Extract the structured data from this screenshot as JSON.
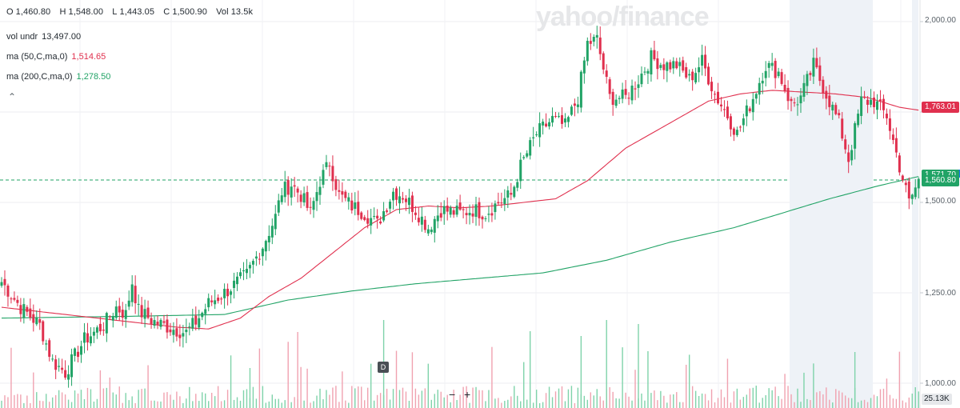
{
  "header": {
    "open_label": "O",
    "open": "1,460.80",
    "high_label": "H",
    "high": "1,548.00",
    "low_label": "L",
    "low": "1,443.05",
    "close_label": "C",
    "close": "1,500.90",
    "vol_label": "Vol",
    "vol": "13.5k"
  },
  "indicators": [
    {
      "label": "vol undr",
      "value": "13,497.00",
      "color": "#232a31"
    },
    {
      "label": "ma (50,C,ma,0)",
      "value": "1,514.65",
      "color": "#e0304e"
    },
    {
      "label": "ma (200,C,ma,0)",
      "value": "1,278.50",
      "color": "#21a366"
    }
  ],
  "watermark": "yahoo/finance",
  "badge_d": "D",
  "zoom_out": "−",
  "zoom_in": "+",
  "price_tags": {
    "ma50": {
      "value": "1,763.01",
      "color": "#e0304e"
    },
    "ma200": {
      "value": "1,571.70",
      "color": "#21a366"
    },
    "last": {
      "value": "1,560.80",
      "color": "#21a366"
    }
  },
  "volume_tag": "25.13K",
  "chart_data": {
    "type": "candlestick",
    "y_axis": {
      "ticks": [
        1000,
        1250,
        1500,
        1750,
        2000
      ],
      "tick_labels": [
        "1,000.00",
        "1,250.00",
        "1,500.00",
        "1,750.00",
        "2,000.00"
      ],
      "range": [
        988,
        2050
      ],
      "side": "right"
    },
    "grid": true,
    "colors": {
      "up": "#21a366",
      "down": "#e0304e",
      "ma50": "#e0304e",
      "ma200": "#21a366"
    },
    "close_anchors": [
      [
        0,
        1280
      ],
      [
        6,
        1210
      ],
      [
        12,
        1160
      ],
      [
        16,
        1060
      ],
      [
        20,
        1030
      ],
      [
        26,
        1120
      ],
      [
        32,
        1160
      ],
      [
        36,
        1210
      ],
      [
        39,
        1190
      ],
      [
        41,
        1280
      ],
      [
        43,
        1200
      ],
      [
        48,
        1170
      ],
      [
        54,
        1150
      ],
      [
        58,
        1140
      ],
      [
        61,
        1170
      ],
      [
        65,
        1220
      ],
      [
        70,
        1250
      ],
      [
        77,
        1300
      ],
      [
        82,
        1380
      ],
      [
        86,
        1460
      ],
      [
        88,
        1530
      ],
      [
        91,
        1550
      ],
      [
        94,
        1520
      ],
      [
        97,
        1470
      ],
      [
        100,
        1560
      ],
      [
        103,
        1610
      ],
      [
        106,
        1520
      ],
      [
        110,
        1490
      ],
      [
        114,
        1470
      ],
      [
        118,
        1440
      ],
      [
        123,
        1530
      ],
      [
        126,
        1520
      ],
      [
        130,
        1480
      ],
      [
        134,
        1430
      ],
      [
        138,
        1480
      ],
      [
        144,
        1470
      ],
      [
        148,
        1480
      ],
      [
        152,
        1470
      ],
      [
        156,
        1500
      ],
      [
        160,
        1520
      ],
      [
        163,
        1600
      ],
      [
        168,
        1690
      ],
      [
        173,
        1730
      ],
      [
        177,
        1710
      ],
      [
        181,
        1790
      ],
      [
        184,
        1940
      ],
      [
        187,
        1950
      ],
      [
        191,
        1790
      ],
      [
        196,
        1790
      ],
      [
        200,
        1840
      ],
      [
        204,
        1900
      ],
      [
        208,
        1880
      ],
      [
        212,
        1880
      ],
      [
        216,
        1840
      ],
      [
        220,
        1890
      ],
      [
        224,
        1800
      ],
      [
        228,
        1740
      ],
      [
        231,
        1690
      ],
      [
        236,
        1790
      ],
      [
        240,
        1880
      ],
      [
        244,
        1860
      ],
      [
        248,
        1770
      ],
      [
        251,
        1790
      ],
      [
        255,
        1880
      ],
      [
        259,
        1800
      ],
      [
        263,
        1720
      ],
      [
        266,
        1620
      ],
      [
        270,
        1780
      ],
      [
        274,
        1780
      ],
      [
        278,
        1740
      ],
      [
        282,
        1600
      ],
      [
        285,
        1500
      ],
      [
        288,
        1560
      ]
    ],
    "ma50_anchors": [
      [
        0,
        1210
      ],
      [
        20,
        1190
      ],
      [
        40,
        1170
      ],
      [
        55,
        1155
      ],
      [
        65,
        1150
      ],
      [
        75,
        1180
      ],
      [
        84,
        1240
      ],
      [
        94,
        1290
      ],
      [
        104,
        1360
      ],
      [
        114,
        1430
      ],
      [
        124,
        1480
      ],
      [
        134,
        1490
      ],
      [
        144,
        1485
      ],
      [
        154,
        1490
      ],
      [
        164,
        1500
      ],
      [
        174,
        1510
      ],
      [
        184,
        1560
      ],
      [
        196,
        1650
      ],
      [
        210,
        1720
      ],
      [
        222,
        1780
      ],
      [
        232,
        1800
      ],
      [
        242,
        1810
      ],
      [
        252,
        1805
      ],
      [
        262,
        1800
      ],
      [
        272,
        1790
      ],
      [
        282,
        1763.01
      ],
      [
        288,
        1755
      ]
    ],
    "ma200_anchors": [
      [
        0,
        1180
      ],
      [
        40,
        1185
      ],
      [
        70,
        1190
      ],
      [
        90,
        1230
      ],
      [
        110,
        1255
      ],
      [
        130,
        1275
      ],
      [
        150,
        1290
      ],
      [
        170,
        1305
      ],
      [
        190,
        1340
      ],
      [
        210,
        1390
      ],
      [
        230,
        1430
      ],
      [
        245,
        1470
      ],
      [
        260,
        1510
      ],
      [
        275,
        1545
      ],
      [
        288,
        1571.7
      ]
    ],
    "volume_axis_max": 30000
  }
}
